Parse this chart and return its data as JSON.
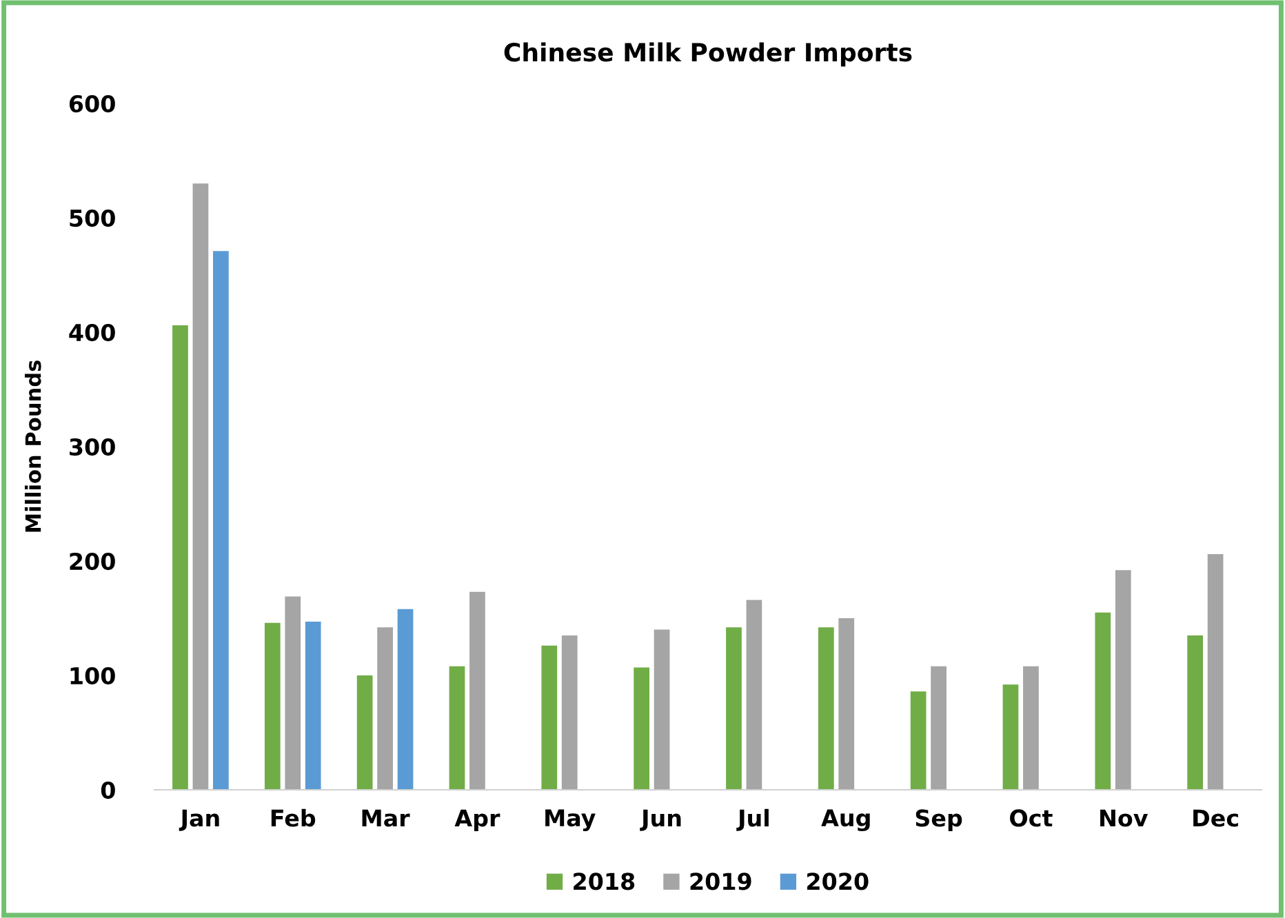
{
  "chart_data": {
    "type": "bar",
    "title": "Chinese Milk Powder Imports",
    "ylabel": "Million Pounds",
    "categories": [
      "Jan",
      "Feb",
      "Mar",
      "Apr",
      "May",
      "Jun",
      "Jul",
      "Aug",
      "Sep",
      "Oct",
      "Nov",
      "Dec"
    ],
    "series": [
      {
        "name": "2018",
        "color": "#70ad47",
        "values": [
          406,
          146,
          100,
          108,
          126,
          107,
          142,
          142,
          86,
          92,
          155,
          135
        ]
      },
      {
        "name": "2019",
        "color": "#a5a5a5",
        "values": [
          530,
          169,
          142,
          173,
          135,
          140,
          166,
          150,
          108,
          108,
          192,
          206
        ]
      },
      {
        "name": "2020",
        "color": "#5b9bd5",
        "values": [
          471,
          147,
          158,
          null,
          null,
          null,
          null,
          null,
          null,
          null,
          null,
          null
        ]
      }
    ],
    "ylim": [
      0,
      600
    ],
    "yticks": [
      0,
      100,
      200,
      300,
      400,
      500,
      600
    ],
    "grid": false,
    "legend": "bottom"
  }
}
